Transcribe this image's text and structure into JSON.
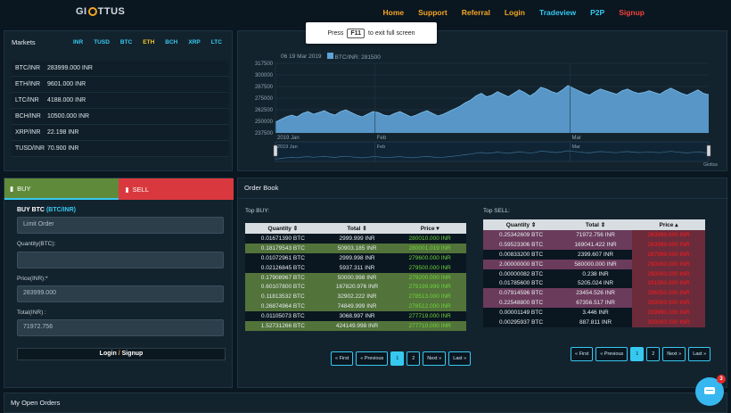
{
  "nav": {
    "logo": "GIOTTUS",
    "links": [
      "Home",
      "Support",
      "Referral",
      "Login",
      "Tradeview",
      "P2P",
      "Signup"
    ]
  },
  "fullscreen_tip": {
    "press": "Press",
    "key": "F11",
    "rest": "to exit full screen"
  },
  "markets": {
    "title": "Markets",
    "tabs": [
      "INR",
      "TUSD",
      "BTC",
      "ETH",
      "BCH",
      "XRP",
      "LTC"
    ],
    "active_tab": "ETH",
    "rows": [
      {
        "pair": "BTC/INR",
        "price": "283999.000 INR"
      },
      {
        "pair": "ETH/INR",
        "price": "9601.000 INR"
      },
      {
        "pair": "LTC/INR",
        "price": "4188.000 INR"
      },
      {
        "pair": "BCH/INR",
        "price": "10500.000 INR"
      },
      {
        "pair": "XRP/INR",
        "price": "22.198 INR"
      },
      {
        "pair": "TUSD/INR",
        "price": "70.900 INR"
      }
    ]
  },
  "chart_data": {
    "type": "area",
    "legend_date": "06 19 Mar 2019",
    "series": [
      {
        "name": "BTC/INR: 281500",
        "values": [
          250000,
          253000,
          256000,
          258000,
          256000,
          260000,
          262000,
          259000,
          261000,
          263000,
          260000,
          258000,
          262000,
          264000,
          261000,
          258000,
          256000,
          259000,
          262000,
          261000,
          258000,
          257000,
          260000,
          262000,
          259000,
          256000,
          258000,
          261000,
          263000,
          260000,
          257000,
          259000,
          262000,
          265000,
          268000,
          272000,
          275000,
          280000,
          283000,
          279000,
          281000,
          285000,
          282000,
          279000,
          283000,
          287000,
          284000,
          280000,
          284000,
          290000,
          288000,
          285000,
          283000,
          287000,
          292000,
          289000,
          286000,
          283000,
          281000,
          285000,
          288000,
          286000,
          284000,
          282000,
          286000,
          288000,
          285000,
          283000,
          284000,
          286000,
          284000,
          282000,
          286000,
          289000,
          286000,
          283000,
          281000,
          284000,
          287000,
          283000,
          281500
        ]
      }
    ],
    "y_ticks": [
      "317500",
      "300000",
      "287500",
      "275000",
      "262500",
      "250000",
      "237500"
    ],
    "ylim": [
      237500,
      317500
    ],
    "x_ticks": [
      "2019 Jan",
      "Feb",
      "Mar"
    ],
    "navigator_ticks": [
      "2019 Jan",
      "Feb",
      "Mar"
    ],
    "credit": "Giottus"
  },
  "trade": {
    "buy_tab": "BUY",
    "sell_tab": "SELL",
    "heading": "BUY BTC",
    "heading_pair": "(BTC/INR)",
    "order_type": "Limit Order",
    "quantity_label": "Quantity(BTC):",
    "quantity_value": "",
    "price_label": "Price(INR):*",
    "price_value": "283999.000",
    "total_label": "Total(INR) :",
    "total_value": "71972.756",
    "login": "Login",
    "sep": "/",
    "signup": "Signup"
  },
  "orderbook": {
    "title": "Order Book",
    "buy_title": "Top BUY:",
    "sell_title": "Top SELL:",
    "headers": [
      "Quantity",
      "Total",
      "Price"
    ],
    "buy_rows": [
      [
        "0.01671390 BTC",
        "2999.999 INR",
        "280010.000 INR"
      ],
      [
        "0.18179543 BTC",
        "50903.185 INR",
        "280001.019 INR"
      ],
      [
        "0.01072961 BTC",
        "2999.998 INR",
        "279600.000 INR"
      ],
      [
        "0.02126845 BTC",
        "5937.311 INR",
        "279500.000 INR"
      ],
      [
        "0.17908967 BTC",
        "50000.998 INR",
        "279200.000 INR"
      ],
      [
        "0.60107800 BTC",
        "167820.976 INR",
        "279199.999 INR"
      ],
      [
        "0.11813532 BTC",
        "32902.222 INR",
        "278513.000 INR"
      ],
      [
        "0.26874964 BTC",
        "74849.999 INR",
        "278512.000 INR"
      ],
      [
        "0.01105073 BTC",
        "3068.997 INR",
        "277719.000 INR"
      ],
      [
        "1.52731266 BTC",
        "424149.998 INR",
        "277710.000 INR"
      ]
    ],
    "sell_rows": [
      [
        "0.25342609 BTC",
        "71972.756 INR",
        "283999.000 INR"
      ],
      [
        "0.59523306 BTC",
        "169041.422 INR",
        "283999.000 INR"
      ],
      [
        "0.00833200 BTC",
        "2399.607 INR",
        "287999.000 INR"
      ],
      [
        "2.00000000 BTC",
        "580000.000 INR",
        "290000.000 INR"
      ],
      [
        "0.00000082 BTC",
        "0.238 INR",
        "290000.000 INR"
      ],
      [
        "0.01785600 BTC",
        "5205.024 INR",
        "291500.000 INR"
      ],
      [
        "0.07914596 BTC",
        "23454.526 INR",
        "296350.000 INR"
      ],
      [
        "0.22548800 BTC",
        "67356.517 INR",
        "299000.000 INR"
      ],
      [
        "0.00001149 BTC",
        "3.446 INR",
        "299990.000 INR"
      ],
      [
        "0.00295937 BTC",
        "887.811 INR",
        "300000.000 INR"
      ]
    ],
    "pager": [
      "« First",
      "« Previous",
      "1",
      "2",
      "Next »",
      "Last »"
    ]
  },
  "open_orders": {
    "title": "My Open Orders"
  },
  "chat": {
    "badge": "3"
  }
}
